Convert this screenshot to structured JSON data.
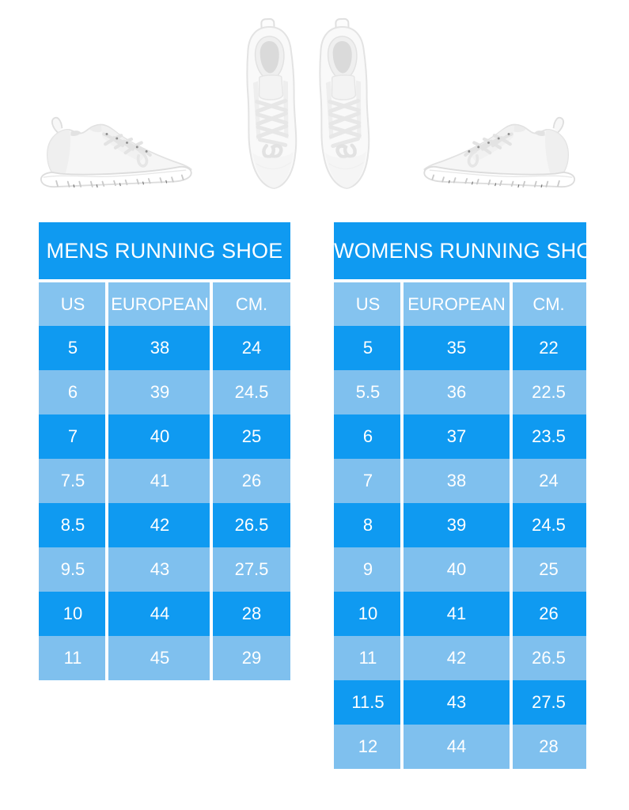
{
  "colors": {
    "background": "#ffffff",
    "primary_blue": "#0f9af1",
    "light_blue": "#7fc0ee",
    "header_blue": "#84c3ef",
    "table_text": "#ffffff",
    "separator": "#ffffff"
  },
  "hero": {
    "images": [
      {
        "name": "running-shoe-side-view-image"
      },
      {
        "name": "running-shoes-pair-top-view-image"
      },
      {
        "name": "running-shoe-side-view-mirrored-image"
      }
    ]
  },
  "chart_data": [
    {
      "type": "table",
      "title": "MENS RUNNING SHOE",
      "columns": [
        "US",
        "EUROPEAN",
        "CM."
      ],
      "rows": [
        [
          "5",
          "38",
          "24"
        ],
        [
          "6",
          "39",
          "24.5"
        ],
        [
          "7",
          "40",
          "25"
        ],
        [
          "7.5",
          "41",
          "26"
        ],
        [
          "8.5",
          "42",
          "26.5"
        ],
        [
          "9.5",
          "43",
          "27.5"
        ],
        [
          "10",
          "44",
          "28"
        ],
        [
          "11",
          "45",
          "29"
        ]
      ]
    },
    {
      "type": "table",
      "title": "WOMENS RUNNING SHOE",
      "columns": [
        "US",
        "EUROPEAN",
        "CM."
      ],
      "rows": [
        [
          "5",
          "35",
          "22"
        ],
        [
          "5.5",
          "36",
          "22.5"
        ],
        [
          "6",
          "37",
          "23.5"
        ],
        [
          "7",
          "38",
          "24"
        ],
        [
          "8",
          "39",
          "24.5"
        ],
        [
          "9",
          "40",
          "25"
        ],
        [
          "10",
          "41",
          "26"
        ],
        [
          "11",
          "42",
          "26.5"
        ],
        [
          "11.5",
          "43",
          "27.5"
        ],
        [
          "12",
          "44",
          "28"
        ]
      ]
    }
  ]
}
